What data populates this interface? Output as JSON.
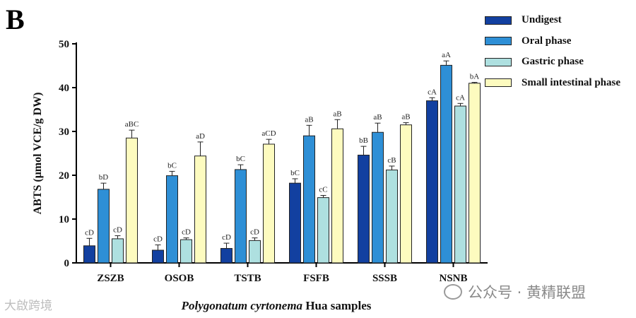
{
  "panel_letter": "B",
  "watermarks": {
    "left": "大啟跨境",
    "right": "公众号 · 黄精联盟"
  },
  "colors": {
    "undigest": "#1240a0",
    "oral": "#2e8fd6",
    "gastric": "#aee0e0",
    "small_intestinal": "#fdfbbf"
  },
  "chart_data": {
    "type": "bar",
    "title": "",
    "xlabel_italic": "Polygonatum cyrtonema",
    "xlabel_rest": " Hua samples",
    "ylabel": "ABTS (μmol VCE/g DW)",
    "ylim": [
      0,
      50
    ],
    "yticks": [
      0,
      10,
      20,
      30,
      40,
      50
    ],
    "grid": false,
    "legend_position": "top-right",
    "categories": [
      "ZSZB",
      "OSOB",
      "TSTB",
      "FSFB",
      "SSSB",
      "NSNB"
    ],
    "series": [
      {
        "name": "Undigest",
        "color_key": "undigest",
        "values": [
          3.9,
          2.9,
          3.3,
          18.2,
          24.6,
          37.0
        ],
        "errors": [
          1.7,
          1.2,
          1.2,
          1.0,
          2.0,
          0.7
        ],
        "labels": [
          "cD",
          "cD",
          "cD",
          "bC",
          "bB",
          "cA"
        ]
      },
      {
        "name": "Oral phase",
        "color_key": "oral",
        "values": [
          16.8,
          19.9,
          21.3,
          29.0,
          29.8,
          45.1
        ],
        "errors": [
          1.4,
          1.0,
          1.1,
          2.4,
          2.1,
          1.0
        ],
        "labels": [
          "bD",
          "bC",
          "bC",
          "aB",
          "aB",
          "aA"
        ]
      },
      {
        "name": "Gastric phase",
        "color_key": "gastric",
        "values": [
          5.5,
          5.3,
          5.1,
          14.9,
          21.2,
          35.8
        ],
        "errors": [
          0.7,
          0.4,
          0.6,
          0.5,
          0.9,
          0.6
        ],
        "labels": [
          "cD",
          "cD",
          "cD",
          "cC",
          "cB",
          "cA"
        ]
      },
      {
        "name": "Small intestinal phase",
        "color_key": "small_intestinal",
        "values": [
          28.5,
          24.4,
          27.1,
          30.6,
          31.5,
          41.0
        ],
        "errors": [
          1.8,
          3.2,
          1.1,
          2.1,
          0.5,
          0.2
        ],
        "labels": [
          "aBC",
          "aD",
          "aCD",
          "aB",
          "aB",
          "bA"
        ]
      }
    ]
  }
}
